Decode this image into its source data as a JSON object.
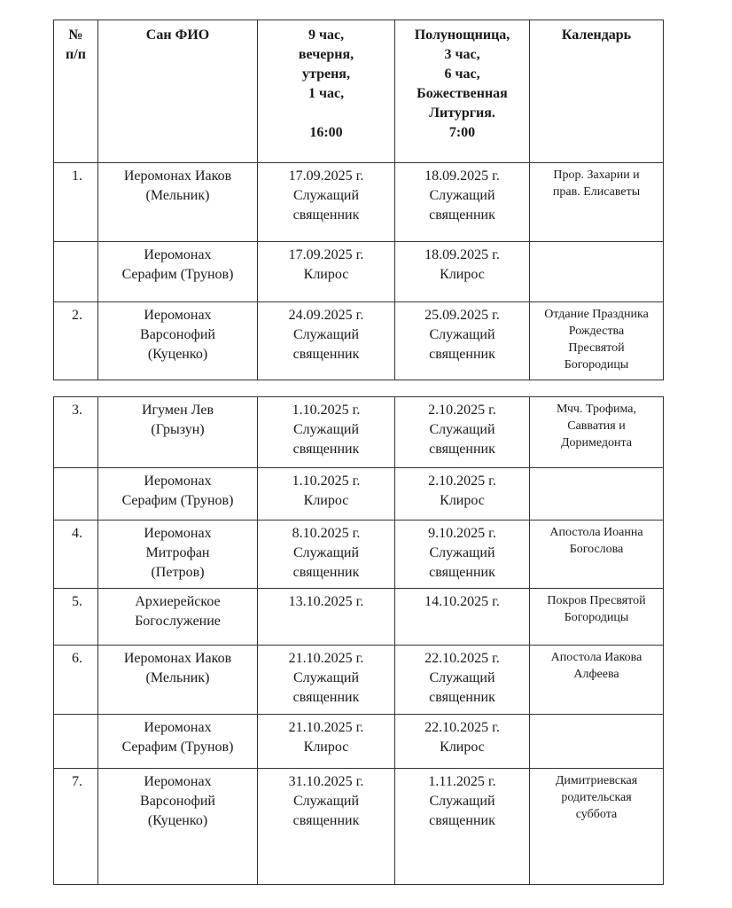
{
  "headers": {
    "num": "№\nп/п",
    "name": "Сан ФИО",
    "vespers": "9 час,\nвечерня,\nутреня,\n1 час,\n\n16:00",
    "liturgy": "Полунощница,\n3 час,\n6 час,\nБожественная\nЛитургия.\n7:00",
    "calendar": "Календарь"
  },
  "table1": [
    {
      "num": "1.",
      "name": "Иеромонах Иаков\n(Мельник)",
      "vespers": "17.09.2025 г.\nСлужащий\nсвященник",
      "liturgy": "18.09.2025 г.\nСлужащий\nсвященник",
      "calendar": "Прор. Захарии и\nправ. Елисаветы"
    },
    {
      "num": "",
      "name": "Иеромонах\nСерафим (Трунов)",
      "vespers": "17.09.2025 г.\nКлирос",
      "liturgy": "18.09.2025 г.\nКлирос",
      "calendar": ""
    },
    {
      "num": "2.",
      "name": "Иеромонах\nВарсонофий\n(Куценко)",
      "vespers": "24.09.2025 г.\nСлужащий\nсвященник",
      "liturgy": "25.09.2025 г.\nСлужащий\nсвященник",
      "calendar": "Отдание Праздника\nРождества\nПресвятой\nБогородицы"
    }
  ],
  "table2": [
    {
      "num": "3.",
      "name": "Игумен Лев\n(Грызун)",
      "vespers": "1.10.2025 г.\nСлужащий\nсвященник",
      "liturgy": "2.10.2025 г.\nСлужащий\nсвященник",
      "calendar": "Мчч. Трофима,\nСавватия и\nДоримедонта"
    },
    {
      "num": "",
      "name": "Иеромонах\nСерафим (Трунов)",
      "vespers": "1.10.2025 г.\nКлирос",
      "liturgy": "2.10.2025 г.\nКлирос",
      "calendar": ""
    },
    {
      "num": "4.",
      "name": "Иеромонах\nМитрофан\n(Петров)",
      "vespers": "8.10.2025 г.\nСлужащий\nсвященник",
      "liturgy": "9.10.2025 г.\nСлужащий\nсвященник",
      "calendar": "Апостола Иоанна\nБогослова"
    },
    {
      "num": "5.",
      "name": "Архиерейское\nБогослужение",
      "vespers": "13.10.2025 г.",
      "liturgy": "14.10.2025 г.",
      "calendar": "Покров Пресвятой\nБогородицы"
    },
    {
      "num": "6.",
      "name": "Иеромонах Иаков\n(Мельник)",
      "vespers": "21.10.2025 г.\nСлужащий\nсвященник",
      "liturgy": "22.10.2025 г.\nСлужащий\nсвященник",
      "calendar": "Апостола Иакова\nАлфеева"
    },
    {
      "num": "",
      "name": "Иеромонах\nСерафим (Трунов)",
      "vespers": "21.10.2025 г.\nКлирос",
      "liturgy": "22.10.2025 г.\nКлирос",
      "calendar": ""
    },
    {
      "num": "7.",
      "name": "Иеромонах\nВарсонофий\n(Куценко)",
      "vespers": "31.10.2025 г.\nСлужащий\nсвященник",
      "liturgy": "1.11.2025 г.\nСлужащий\nсвященник",
      "calendar": "Димитриевская\nродительская\nсуббота"
    }
  ]
}
